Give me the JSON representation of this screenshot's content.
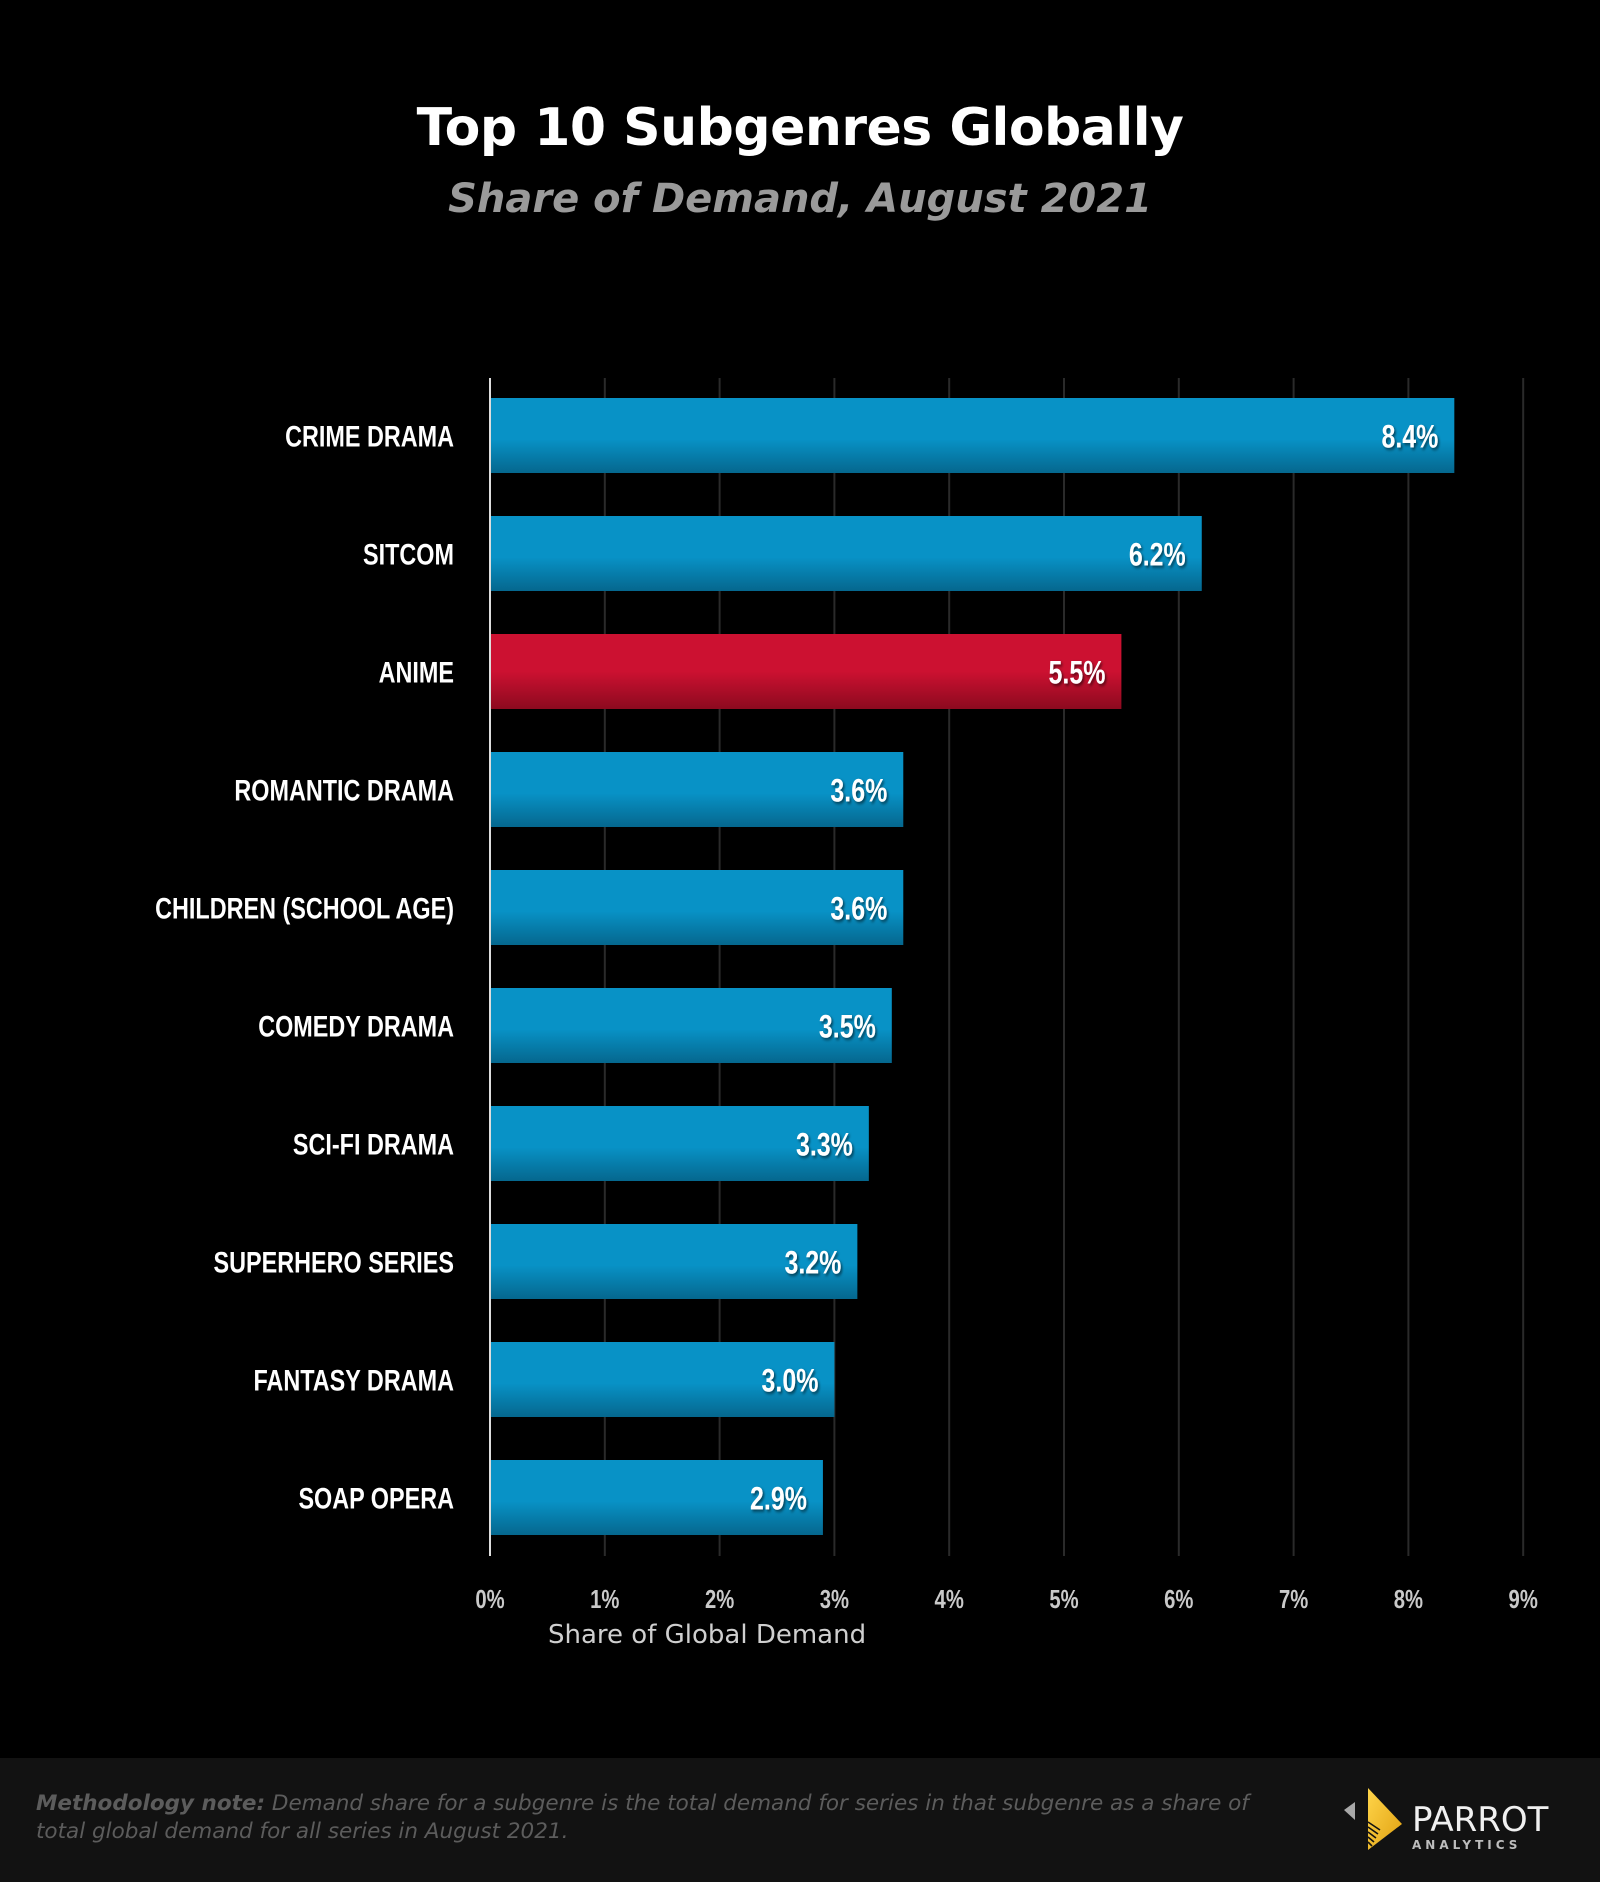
{
  "chart_data": {
    "type": "bar",
    "orientation": "horizontal",
    "title": "Top 10 Subgenres Globally",
    "subtitle": "Share of Demand, August 2021",
    "xlabel": "Share of Global Demand",
    "ylabel": "",
    "xlim": [
      0,
      9
    ],
    "x_ticks": [
      "0%",
      "1%",
      "2%",
      "3%",
      "4%",
      "5%",
      "6%",
      "7%",
      "8%",
      "9%"
    ],
    "grid": "vertical",
    "categories": [
      "CRIME DRAMA",
      "SITCOM",
      "ANIME",
      "ROMANTIC DRAMA",
      "CHILDREN (SCHOOL AGE)",
      "COMEDY DRAMA",
      "SCI-FI DRAMA",
      "SUPERHERO SERIES",
      "FANTASY DRAMA",
      "SOAP OPERA"
    ],
    "values": [
      8.4,
      6.2,
      5.5,
      3.6,
      3.6,
      3.5,
      3.3,
      3.2,
      3.0,
      2.9
    ],
    "value_labels": [
      "8.4%",
      "6.2%",
      "5.5%",
      "3.6%",
      "3.6%",
      "3.5%",
      "3.3%",
      "3.2%",
      "3.0%",
      "2.9%"
    ],
    "highlight": [
      "blue",
      "blue",
      "red",
      "blue",
      "blue",
      "blue",
      "blue",
      "blue",
      "blue",
      "blue"
    ],
    "colors": {
      "blue_top": "#0892c6",
      "blue_bottom": "#05678e",
      "red_top": "#cc1131",
      "red_bottom": "#8c0a1f",
      "grid": "#2a2a2a",
      "axis": "#dddddd"
    }
  },
  "footer": {
    "note_label": "Methodology note:",
    "note_text": " Demand share for a subgenre is the total demand for series in that subgenre as a share of total global demand for all series in August 2021.",
    "logo_word": "PARROT",
    "logo_sub": "ANALYTICS"
  }
}
